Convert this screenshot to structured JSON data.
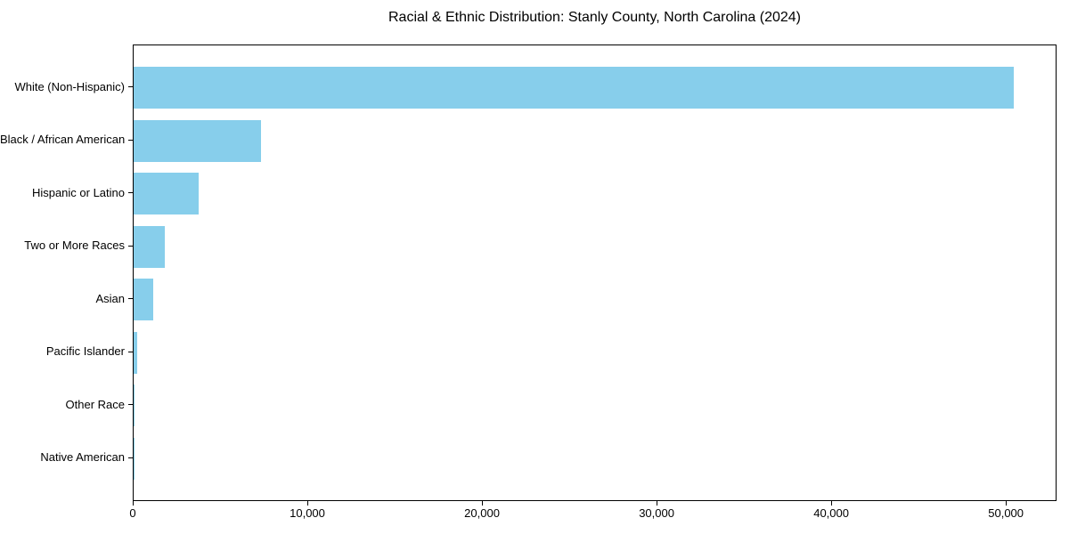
{
  "chart_data": {
    "type": "bar",
    "orientation": "horizontal",
    "title": "Racial & Ethnic Distribution: Stanly County, North Carolina (2024)",
    "xlabel": "",
    "ylabel": "",
    "categories": [
      "White (Non-Hispanic)",
      "Black / African American",
      "Hispanic or Latino",
      "Two or More Races",
      "Asian",
      "Pacific Islander",
      "Other Race",
      "Native American"
    ],
    "values": [
      50400,
      7300,
      3720,
      1790,
      1130,
      180,
      60,
      25
    ],
    "xlim": [
      0,
      52900
    ],
    "xticks": [
      0,
      10000,
      20000,
      30000,
      40000,
      50000
    ],
    "xtick_labels": [
      "0",
      "10,000",
      "20,000",
      "30,000",
      "40,000",
      "50,000"
    ],
    "bar_color": "#87CEEB",
    "background_color": "#FFFFFF",
    "frame_color": "#000000",
    "grid": false,
    "legend": null
  }
}
